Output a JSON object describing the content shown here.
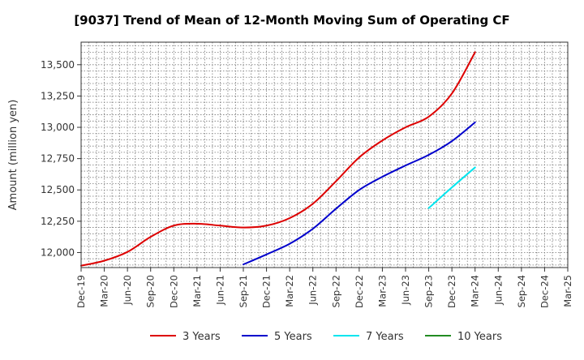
{
  "chart_data": {
    "type": "line",
    "title": "[9037]  Trend of Mean of 12-Month Moving Sum of Operating CF",
    "xlabel": "",
    "ylabel": "Amount (million yen)",
    "ylim": [
      11880,
      13680
    ],
    "yticks": [
      12000,
      12250,
      12500,
      12750,
      13000,
      13250,
      13500
    ],
    "ytick_labels": [
      "12,000",
      "12,250",
      "12,500",
      "12,750",
      "13,000",
      "13,250",
      "13,500"
    ],
    "x_categories": [
      "Dec-19",
      "Mar-20",
      "Jun-20",
      "Sep-20",
      "Dec-20",
      "Mar-21",
      "Jun-21",
      "Sep-21",
      "Dec-21",
      "Mar-22",
      "Jun-22",
      "Sep-22",
      "Dec-22",
      "Mar-23",
      "Jun-23",
      "Sep-23",
      "Dec-23",
      "Mar-24",
      "Jun-24",
      "Sep-24",
      "Dec-24",
      "Mar-25"
    ],
    "grid": true,
    "legend_position": "bottom",
    "series": [
      {
        "name": "3 Years",
        "color": "#dd0000",
        "points": [
          [
            0,
            11895
          ],
          [
            1,
            11935
          ],
          [
            2,
            12005
          ],
          [
            3,
            12125
          ],
          [
            4,
            12215
          ],
          [
            5,
            12230
          ],
          [
            6,
            12215
          ],
          [
            7,
            12200
          ],
          [
            8,
            12215
          ],
          [
            9,
            12275
          ],
          [
            10,
            12390
          ],
          [
            11,
            12570
          ],
          [
            12,
            12760
          ],
          [
            13,
            12895
          ],
          [
            14,
            13000
          ],
          [
            15,
            13085
          ],
          [
            16,
            13270
          ],
          [
            17,
            13600
          ]
        ]
      },
      {
        "name": "5 Years",
        "color": "#0000cc",
        "points": [
          [
            7,
            11905
          ],
          [
            8,
            11985
          ],
          [
            9,
            12070
          ],
          [
            10,
            12190
          ],
          [
            11,
            12350
          ],
          [
            12,
            12500
          ],
          [
            13,
            12605
          ],
          [
            14,
            12695
          ],
          [
            15,
            12780
          ],
          [
            16,
            12890
          ],
          [
            17,
            13040
          ]
        ]
      },
      {
        "name": "7 Years",
        "color": "#00e5ee",
        "points": [
          [
            15,
            12355
          ],
          [
            16,
            12520
          ],
          [
            17,
            12680
          ]
        ]
      },
      {
        "name": "10 Years",
        "color": "#228b22",
        "points": []
      }
    ]
  }
}
